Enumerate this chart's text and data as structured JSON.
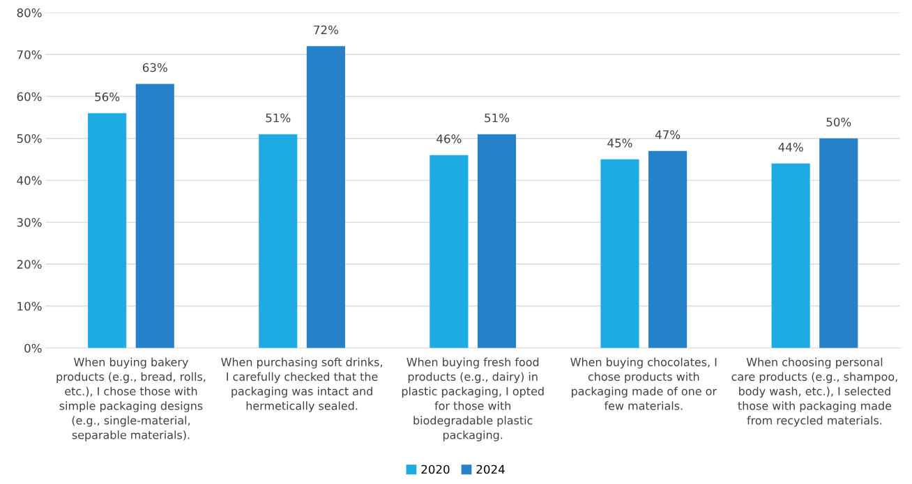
{
  "chart_data": {
    "type": "bar",
    "categories": [
      "When buying bakery\nproducts (e.g., bread, rolls,\netc.), I chose those with\nsimple packaging designs\n(e.g., single-material,\nseparable materials).",
      "When purchasing soft drinks,\nI carefully checked that the\npackaging was intact and\nhermetically sealed.",
      "When buying fresh food\nproducts (e.g., dairy) in\nplastic packaging, I opted\nfor those with\nbiodegradable plastic\npackaging.",
      "When buying chocolates, I\nchose products with\npackaging made of one or\nfew materials.",
      "When choosing personal\ncare products (e.g., shampoo,\nbody wash, etc.), I selected\nthose with packaging made\nfrom recycled materials."
    ],
    "series": [
      {
        "name": "2020",
        "color": "#1eaae2",
        "values": [
          56,
          51,
          46,
          45,
          44
        ],
        "value_labels": [
          "56%",
          "51%",
          "46%",
          "45%",
          "44%"
        ]
      },
      {
        "name": "2024",
        "color": "#2681c8",
        "values": [
          63,
          72,
          51,
          47,
          50
        ],
        "value_labels": [
          "63%",
          "72%",
          "51%",
          "47%",
          "50%"
        ]
      }
    ],
    "ylim": [
      0,
      80
    ],
    "yticks": [
      {
        "value": 0,
        "label": "0%"
      },
      {
        "value": 10,
        "label": "10%"
      },
      {
        "value": 20,
        "label": "20%"
      },
      {
        "value": 30,
        "label": "30%"
      },
      {
        "value": 40,
        "label": "40%"
      },
      {
        "value": 50,
        "label": "50%"
      },
      {
        "value": 60,
        "label": "60%"
      },
      {
        "value": 70,
        "label": "70%"
      },
      {
        "value": 80,
        "label": "80%"
      }
    ],
    "grid": "y",
    "legend": "bottom"
  }
}
